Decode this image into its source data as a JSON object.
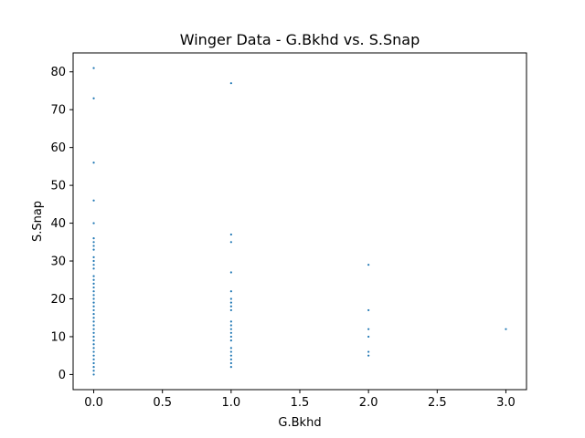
{
  "chart_data": {
    "type": "scatter",
    "title": "Winger Data - G.Bkhd vs. S.Snap",
    "xlabel": "G.Bkhd",
    "ylabel": "S.Snap",
    "xlim": [
      -0.15,
      3.15
    ],
    "ylim": [
      -4,
      85
    ],
    "xticks": [
      0.0,
      0.5,
      1.0,
      1.5,
      2.0,
      2.5,
      3.0
    ],
    "xtick_labels": [
      "0.0",
      "0.5",
      "1.0",
      "1.5",
      "2.0",
      "2.5",
      "3.0"
    ],
    "yticks": [
      0,
      10,
      20,
      30,
      40,
      50,
      60,
      70,
      80
    ],
    "ytick_labels": [
      "0",
      "10",
      "20",
      "30",
      "40",
      "50",
      "60",
      "70",
      "80"
    ],
    "grid": false,
    "marker_color": "#1f77b4",
    "series": [
      {
        "name": "S.Snap",
        "points": [
          [
            0,
            81
          ],
          [
            0,
            73
          ],
          [
            0,
            56
          ],
          [
            0,
            46
          ],
          [
            0,
            40
          ],
          [
            0,
            36
          ],
          [
            0,
            35
          ],
          [
            0,
            34
          ],
          [
            0,
            33
          ],
          [
            0,
            31
          ],
          [
            0,
            30
          ],
          [
            0,
            29
          ],
          [
            0,
            28
          ],
          [
            0,
            26
          ],
          [
            0,
            25
          ],
          [
            0,
            24
          ],
          [
            0,
            23
          ],
          [
            0,
            22
          ],
          [
            0,
            21
          ],
          [
            0,
            20
          ],
          [
            0,
            19
          ],
          [
            0,
            18
          ],
          [
            0,
            17
          ],
          [
            0,
            16
          ],
          [
            0,
            15
          ],
          [
            0,
            14
          ],
          [
            0,
            13
          ],
          [
            0,
            12
          ],
          [
            0,
            11
          ],
          [
            0,
            10
          ],
          [
            0,
            9
          ],
          [
            0,
            8
          ],
          [
            0,
            7
          ],
          [
            0,
            6
          ],
          [
            0,
            5
          ],
          [
            0,
            4
          ],
          [
            0,
            3
          ],
          [
            0,
            2
          ],
          [
            0,
            1
          ],
          [
            0,
            0
          ],
          [
            1,
            77
          ],
          [
            1,
            37
          ],
          [
            1,
            35
          ],
          [
            1,
            27
          ],
          [
            1,
            22
          ],
          [
            1,
            20
          ],
          [
            1,
            19
          ],
          [
            1,
            18
          ],
          [
            1,
            17
          ],
          [
            1,
            14
          ],
          [
            1,
            13
          ],
          [
            1,
            12
          ],
          [
            1,
            11
          ],
          [
            1,
            10
          ],
          [
            1,
            9
          ],
          [
            1,
            7
          ],
          [
            1,
            6
          ],
          [
            1,
            5
          ],
          [
            1,
            4
          ],
          [
            1,
            3
          ],
          [
            1,
            2
          ],
          [
            2,
            29
          ],
          [
            2,
            17
          ],
          [
            2,
            12
          ],
          [
            2,
            10
          ],
          [
            2,
            6
          ],
          [
            2,
            5
          ],
          [
            3,
            12
          ]
        ]
      }
    ]
  }
}
